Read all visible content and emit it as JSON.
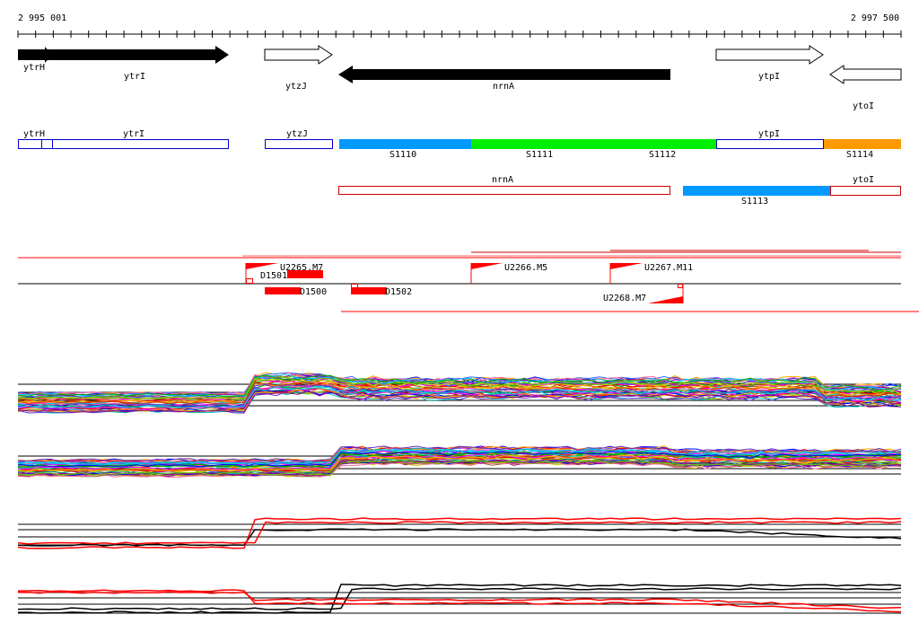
{
  "coords": {
    "start": "2 995 001",
    "end": "2 997 500"
  },
  "colors": {
    "black": "#000000",
    "blue_outline": "#0000cc",
    "red": "#ff0000",
    "seg_blue": "#0099ff",
    "seg_green": "#00ee00",
    "seg_orange": "#ff9900"
  },
  "genes_track": [
    {
      "id": "ytrH",
      "label": "ytrH",
      "strand": "+",
      "fill": "black"
    },
    {
      "id": "ytrI",
      "label": "ytrI",
      "strand": "+",
      "fill": "black"
    },
    {
      "id": "ytzJ",
      "label": "ytzJ",
      "strand": "+",
      "fill": "white"
    },
    {
      "id": "nrnA",
      "label": "nrnA",
      "strand": "-",
      "fill": "black"
    },
    {
      "id": "ytpI",
      "label": "ytpI",
      "strand": "+",
      "fill": "white"
    },
    {
      "id": "ytoI",
      "label": "ytoI",
      "strand": "-",
      "fill": "white"
    }
  ],
  "plus_boxes": [
    {
      "label": "ytrH"
    },
    {
      "label": "ytrI"
    },
    {
      "label": "ytzJ"
    },
    {
      "label": "ytpI"
    }
  ],
  "plus_segments": [
    {
      "label": "S1110",
      "color": "seg_blue"
    },
    {
      "label": "S1111",
      "color": "seg_green"
    },
    {
      "label": "S1112"
    },
    {
      "label": "S1114",
      "color": "seg_orange"
    }
  ],
  "minus_boxes": [
    {
      "label": "nrnA"
    },
    {
      "label": "ytoI"
    }
  ],
  "minus_segments": [
    {
      "label": "S1113",
      "color": "seg_blue"
    }
  ],
  "features": [
    {
      "label": "U2265.M7"
    },
    {
      "label": "D1501"
    },
    {
      "label": "D1500"
    },
    {
      "label": "D1502"
    },
    {
      "label": "U2266.M5"
    },
    {
      "label": "U2267.M11"
    },
    {
      "label": "U2268.M7"
    }
  ],
  "profile_panels": [
    {
      "id": "panel-1",
      "type": "multicolor"
    },
    {
      "id": "panel-2",
      "type": "multicolor"
    },
    {
      "id": "panel-3",
      "type": "red-black"
    },
    {
      "id": "panel-4",
      "type": "red-black"
    }
  ]
}
